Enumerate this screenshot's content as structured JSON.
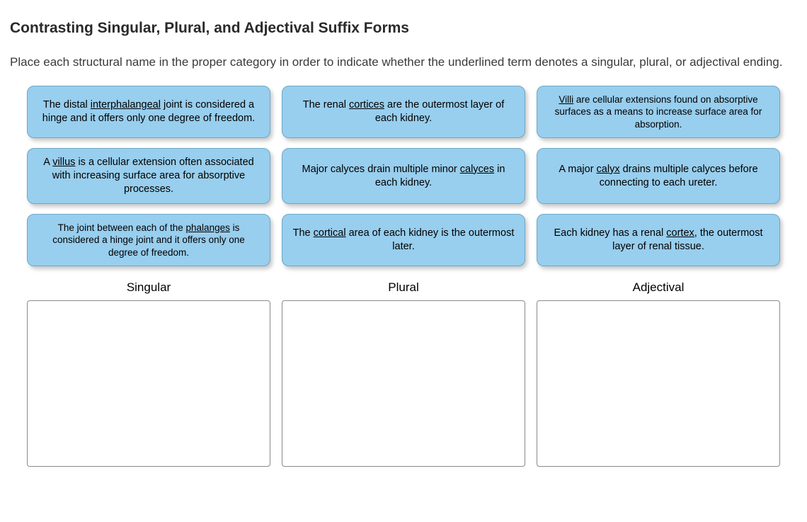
{
  "title": "Contrasting Singular, Plural, and Adjectival Suffix Forms",
  "instructions": "Place each structural name in the proper category in order to indicate whether the underlined term denotes a singular, plural, or adjectival ending.",
  "cards": [
    {
      "pre": "The distal ",
      "u": "interphalangeal",
      "post": " joint is considered a hinge and it offers only one degree of freedom."
    },
    {
      "pre": "The renal ",
      "u": "cortices",
      "post": " are the outermost layer of each kidney."
    },
    {
      "pre": "",
      "u": "Villi",
      "post": " are cellular extensions found on absorptive surfaces as a means to increase surface area for absorption.",
      "small": true
    },
    {
      "pre": "A ",
      "u": "villus",
      "post": " is a cellular extension often associated with increasing surface area for absorptive processes."
    },
    {
      "pre": "Major calyces drain multiple minor ",
      "u": "calyces",
      "post": " in each kidney."
    },
    {
      "pre": "A major ",
      "u": "calyx",
      "post": " drains multiple calyces before connecting to each ureter."
    },
    {
      "pre": "The joint between each of the ",
      "u": "phalanges",
      "post": " is considered a hinge joint and it offers only one degree of freedom.",
      "small": true
    },
    {
      "pre": "The ",
      "u": "cortical",
      "post": " area of each kidney is the outermost later."
    },
    {
      "pre": "Each kidney has a renal ",
      "u": "cortex",
      "post": ", the outermost layer of renal tissue."
    }
  ],
  "drop_labels": [
    "Singular",
    "Plural",
    "Adjectival"
  ],
  "colors": {
    "card_bg": "#98ceee",
    "card_border": "#6fa8c7",
    "page_bg": "#ffffff",
    "text": "#2a2a2a",
    "drop_border": "#8a8a8a"
  }
}
